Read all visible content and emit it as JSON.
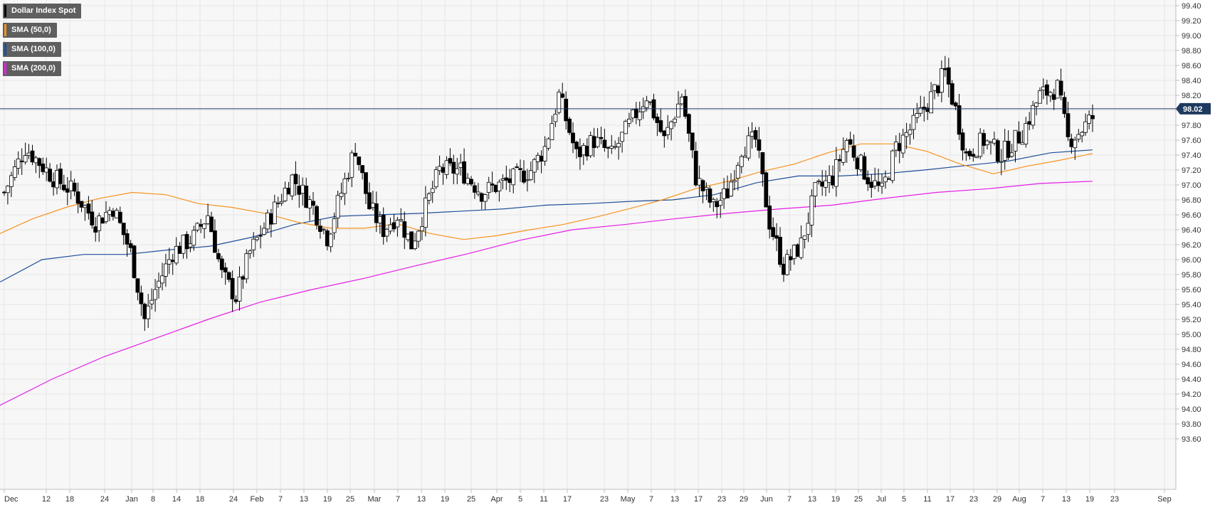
{
  "chart_data": {
    "type": "candlestick",
    "instrument": "Dollar Index Spot",
    "current_price": "98.02",
    "indicators": [
      {
        "name": "SMA (50,0)",
        "color": "#f7931e"
      },
      {
        "name": "SMA (100,0)",
        "color": "#1f4e9a"
      },
      {
        "name": "SMA (200,0)",
        "color": "#e61ee6"
      }
    ],
    "y_ticks": [
      "99.40",
      "99.20",
      "99.00",
      "98.80",
      "98.60",
      "98.40",
      "98.20",
      "98.00",
      "97.80",
      "97.60",
      "97.40",
      "97.20",
      "97.00",
      "96.80",
      "96.60",
      "96.40",
      "96.20",
      "96.00",
      "95.80",
      "95.60",
      "95.40",
      "95.20",
      "95.00",
      "94.80",
      "94.60",
      "94.40",
      "94.20",
      "94.00",
      "93.80",
      "93.60"
    ],
    "ylim": [
      93.5,
      99.5
    ],
    "x_ticks": [
      "Dec",
      "12",
      "18",
      "24",
      "Jan",
      "8",
      "14",
      "18",
      "24",
      "Feb",
      "7",
      "13",
      "19",
      "25",
      "Mar",
      "7",
      "13",
      "19",
      "25",
      "Apr",
      "5",
      "11",
      "17",
      "23",
      "May",
      "7",
      "13",
      "17",
      "23",
      "29",
      "Jun",
      "7",
      "13",
      "19",
      "25",
      "Jul",
      "5",
      "11",
      "17",
      "23",
      "29",
      "Aug",
      "7",
      "13",
      "19",
      "23",
      "Sep"
    ],
    "sma_50": [
      96.35,
      96.55,
      96.7,
      96.82,
      96.9,
      96.87,
      96.75,
      96.7,
      96.62,
      96.5,
      96.42,
      96.42,
      96.48,
      96.35,
      96.27,
      96.32,
      96.4,
      96.47,
      96.57,
      96.68,
      96.8,
      96.95,
      97.05,
      97.18,
      97.28,
      97.43,
      97.55,
      97.55,
      97.45,
      97.28,
      97.15,
      97.25,
      97.33,
      97.42
    ],
    "sma_100": [
      95.7,
      96.0,
      96.07,
      96.07,
      96.13,
      96.18,
      96.3,
      96.47,
      96.58,
      96.6,
      96.62,
      96.65,
      96.68,
      96.73,
      96.75,
      96.78,
      96.8,
      96.87,
      97.03,
      97.12,
      97.12,
      97.15,
      97.2,
      97.26,
      97.32,
      97.43,
      97.47
    ],
    "sma_200": [
      94.05,
      94.4,
      94.7,
      94.95,
      95.2,
      95.43,
      95.6,
      95.75,
      95.92,
      96.08,
      96.26,
      96.4,
      96.47,
      96.55,
      96.62,
      96.68,
      96.73,
      96.82,
      96.9,
      96.95,
      97.02,
      97.05
    ]
  }
}
